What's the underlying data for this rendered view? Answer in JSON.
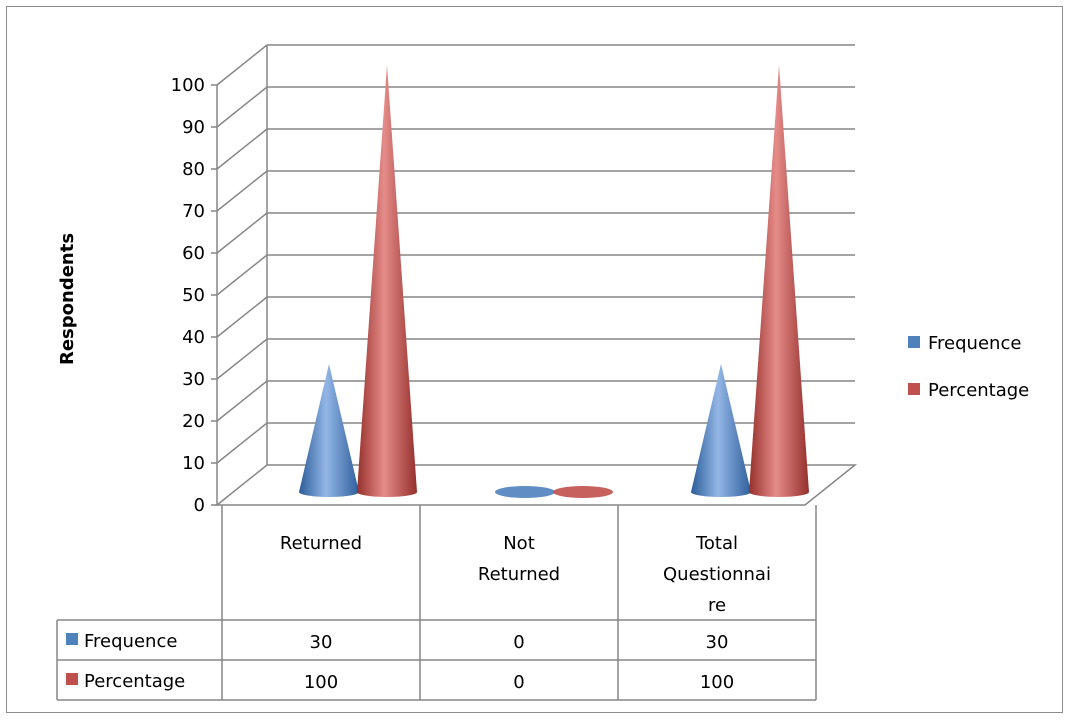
{
  "chart_data": {
    "type": "bar",
    "style": "3d-cone",
    "categories": [
      "Returned",
      "Not Returned",
      "Total Questionnaire"
    ],
    "category_lines": [
      [
        "Returned"
      ],
      [
        "Not",
        "Returned"
      ],
      [
        "Total",
        "Questionnai",
        "re"
      ]
    ],
    "series": [
      {
        "name": "Frequence",
        "values": [
          30,
          0,
          30
        ],
        "color": "#4f81bd"
      },
      {
        "name": "Percentage",
        "values": [
          100,
          0,
          100
        ],
        "color": "#c0504d"
      }
    ],
    "ylabel": "Respondents",
    "ylim": [
      0,
      100
    ],
    "yticks": [
      0,
      10,
      20,
      30,
      40,
      50,
      60,
      70,
      80,
      90,
      100
    ],
    "grid": true,
    "legend": "right",
    "data_table": true,
    "colors": {
      "grid": "#868686",
      "text": "#000000"
    }
  }
}
